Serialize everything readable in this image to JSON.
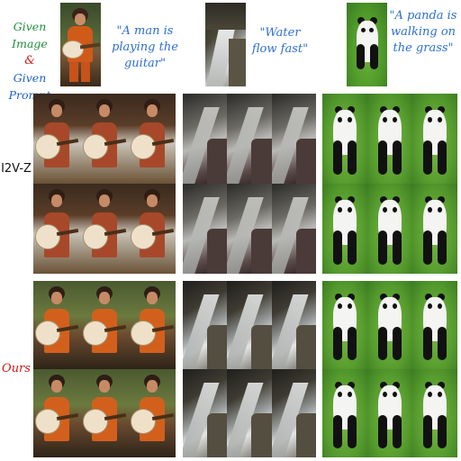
{
  "header": {
    "given_image_label": "Given Image",
    "ampersand": "&",
    "given_prompt_label": "Given Prompt"
  },
  "prompts": [
    "\"A man is playing the guitar\"",
    "\"Water flow fast\"",
    "\"A panda is walking on the grass\""
  ],
  "rows": [
    {
      "label": "I2V-Z",
      "label_color": "#111111"
    },
    {
      "label": "Ours",
      "label_color": "#d11a1a"
    }
  ],
  "colors": {
    "given_image": "#1f8f3a",
    "ampersand": "#d11a1a",
    "given_prompt": "#1e5fc9",
    "prompt_text": "#2d6fd2",
    "ours_label": "#d11a1a"
  },
  "content": {
    "subjects": [
      "man playing guitar",
      "waterfall",
      "panda on grass"
    ],
    "frames_per_group": 6
  }
}
